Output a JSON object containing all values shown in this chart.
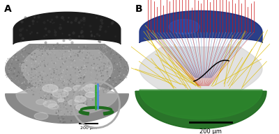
{
  "fig_width": 4.0,
  "fig_height": 1.93,
  "dpi": 100,
  "bg_color": "#ffffff",
  "label_A": "A",
  "label_B": "B",
  "scalebar_text_inset": "200 μm",
  "scalebar_text_B": "200 μm",
  "cornea_dark": "#1c1c1c",
  "cornea_mid": "#383838",
  "body_light": "#b0b0b0",
  "body_mid": "#888888",
  "body_dark": "#555555",
  "mirror_color_B": "#1e6b1e",
  "lens_color_B": "#1a3080",
  "lens_highlight": "#2244aa",
  "gray_retina_color_B": "#c8c8c8",
  "rays_red": "#cc1111",
  "rays_yellow": "#ddbb00",
  "rays_blue_in": "#7799cc",
  "inset_mirror_color": "#1e6b1e",
  "inset_circle_color": "#aaaaaa",
  "inset_line_blue": "#4488dd",
  "inset_line_green": "#33aa33",
  "inset_line_cyan": "#33cccc"
}
